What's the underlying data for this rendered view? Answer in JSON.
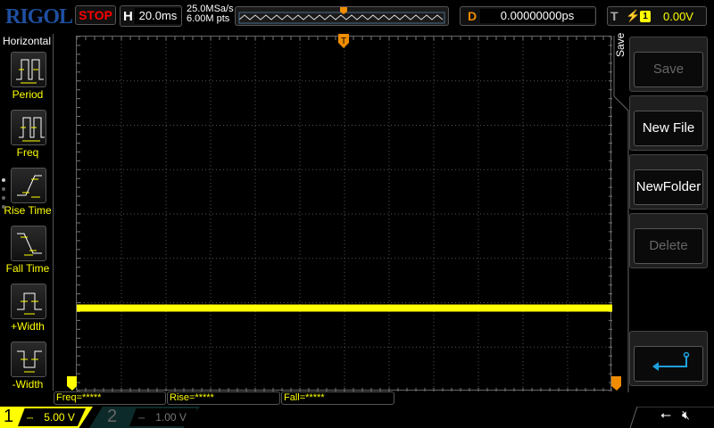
{
  "header": {
    "logo": "RIGOL",
    "run_state": "STOP",
    "h_label": "H",
    "timebase": "20.0ms",
    "sample_rate": "25.0MSa/s",
    "memory_depth": "6.00M pts",
    "delay_label": "D",
    "delay": "0.00000000ps",
    "trigger_label": "T",
    "trigger_edge": "rising-edge-icon",
    "trigger_source": "1",
    "trigger_level": "0.00V"
  },
  "left_panel": {
    "title": "Horizontal",
    "items": [
      {
        "label": "Period"
      },
      {
        "label": "Freq"
      },
      {
        "label": "Rise Time"
      },
      {
        "label": "Fall Time"
      },
      {
        "label": "+Width"
      },
      {
        "label": "-Width"
      }
    ]
  },
  "right_panel": {
    "menu_title": "Save",
    "buttons": [
      {
        "label": "Save",
        "enabled": false
      },
      {
        "label": "New File",
        "enabled": true
      },
      {
        "label": "NewFolder",
        "enabled": true
      },
      {
        "label": "Delete",
        "enabled": false
      }
    ],
    "back_icon": "return-arrow-icon"
  },
  "measurements": [
    {
      "text": "Freq=*****"
    },
    {
      "text": "Rise=*****"
    },
    {
      "text": "Fall=*****"
    }
  ],
  "channels": [
    {
      "num": "1",
      "coupling": "DC",
      "scale": "5.00 V",
      "color": "#ffff00",
      "active": true
    },
    {
      "num": "2",
      "coupling": "DC",
      "scale": "1.00 V",
      "color": "#808080",
      "active": false
    }
  ],
  "status": {
    "usb_icon": "usb-icon",
    "sound_icon": "speaker-muted-icon"
  },
  "colors": {
    "ch1": "#ffff00",
    "trigger": "#f08c00",
    "accent": "#1e90ff"
  }
}
